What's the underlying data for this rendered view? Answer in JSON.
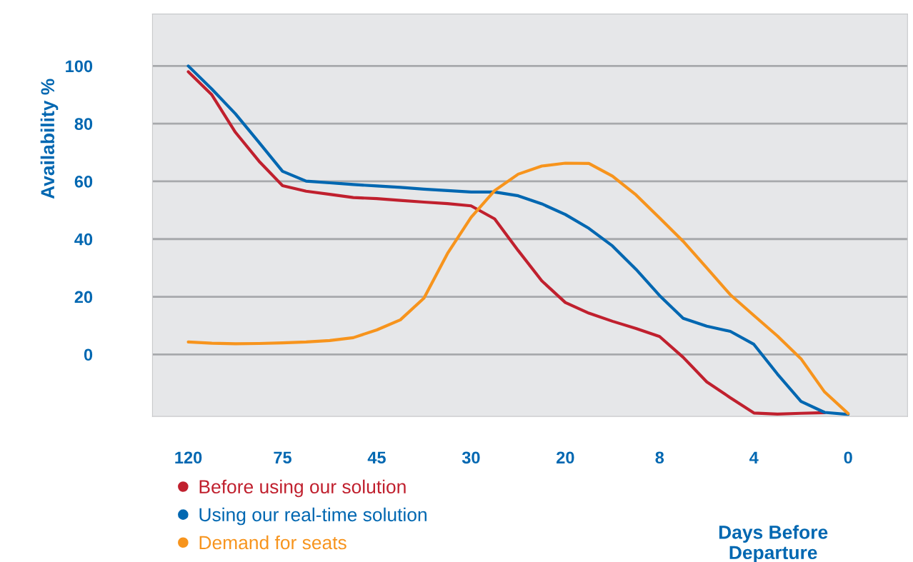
{
  "chart_data": {
    "type": "line",
    "ylabel": "Availability %",
    "xlabel": "Days Before Departure",
    "categories": [
      "120",
      null,
      null,
      null,
      "75",
      null,
      null,
      null,
      "45",
      null,
      null,
      null,
      "30",
      null,
      null,
      null,
      "20",
      null,
      null,
      null,
      "8",
      null,
      null,
      null,
      "4",
      null,
      null,
      null,
      "0"
    ],
    "ylim": [
      -21.5,
      118
    ],
    "yticks": [
      0,
      20,
      40,
      60,
      80,
      100
    ],
    "grid": "y",
    "legend": "bottom left",
    "line_style": "solid",
    "marker": "none",
    "series": [
      {
        "name": "Before using our solution",
        "color": "#c0202e",
        "values": [
          98,
          90,
          77,
          67,
          58.5,
          56.6,
          55.5,
          54.4,
          54,
          53.4,
          52.8,
          52.3,
          51.5,
          47,
          36,
          25.5,
          18,
          14.3,
          11.5,
          9,
          6.2,
          -1,
          -9.5,
          -15,
          -20.3,
          -20.7,
          -20.4,
          -20.2,
          null
        ]
      },
      {
        "name": "Using our real-time solution",
        "color": "#0067b1",
        "values": [
          100,
          92,
          83.4,
          73.5,
          63.5,
          60.1,
          59.5,
          58.9,
          58.4,
          57.9,
          57.3,
          56.8,
          56.3,
          56.3,
          55,
          52.2,
          48.5,
          43.7,
          37.6,
          29.5,
          20.4,
          12.5,
          9.8,
          8,
          3.5,
          -6.8,
          -16.3,
          -20.1,
          -20.8
        ]
      },
      {
        "name": "Demand for seats",
        "color": "#f7941d",
        "values": [
          4.3,
          3.9,
          3.7,
          3.8,
          4.0,
          4.3,
          4.8,
          5.8,
          8.5,
          12,
          19.5,
          35,
          47.5,
          56.8,
          62.5,
          65.3,
          66.3,
          66.2,
          61.8,
          55.3,
          47.3,
          39.2,
          30,
          20.7,
          13.5,
          6.4,
          -1.5,
          -13,
          -20.5
        ]
      }
    ]
  }
}
